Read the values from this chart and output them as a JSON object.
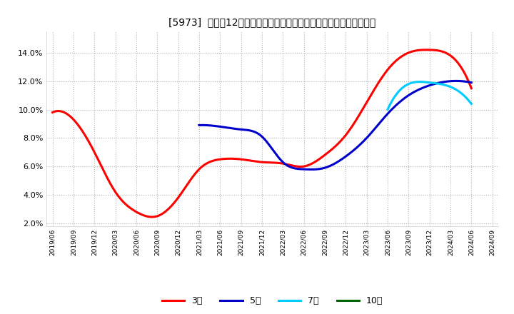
{
  "title": "[5973]  売上高12か月移動合計の対前年同期増減率の標準偏差の推移",
  "ylim": [
    0.018,
    0.155
  ],
  "yticks": [
    0.02,
    0.04,
    0.06,
    0.08,
    0.1,
    0.12,
    0.14
  ],
  "ytick_labels": [
    "2.0%",
    "4.0%",
    "6.0%",
    "8.0%",
    "10.0%",
    "12.0%",
    "14.0%"
  ],
  "background_color": "#ffffff",
  "grid_color": "#aaaaaa",
  "series": {
    "3年": {
      "color": "#ff0000",
      "dates": [
        "2019/06",
        "2019/09",
        "2019/12",
        "2020/03",
        "2020/06",
        "2020/09",
        "2020/12",
        "2021/03",
        "2021/06",
        "2021/09",
        "2021/12",
        "2022/03",
        "2022/06",
        "2022/09",
        "2022/12",
        "2023/03",
        "2023/06",
        "2023/09",
        "2023/12",
        "2024/03",
        "2024/06"
      ],
      "values": [
        0.098,
        0.093,
        0.07,
        0.042,
        0.028,
        0.025,
        0.038,
        0.058,
        0.065,
        0.065,
        0.063,
        0.062,
        0.06,
        0.068,
        0.082,
        0.105,
        0.128,
        0.14,
        0.142,
        0.138,
        0.115
      ]
    },
    "5年": {
      "color": "#0000cc",
      "dates": [
        "2021/03",
        "2021/06",
        "2021/09",
        "2021/12",
        "2022/03",
        "2022/06",
        "2022/09",
        "2022/12",
        "2023/03",
        "2023/06",
        "2023/09",
        "2023/12",
        "2024/03",
        "2024/06"
      ],
      "values": [
        0.089,
        0.088,
        0.086,
        0.081,
        0.063,
        0.058,
        0.059,
        0.067,
        0.08,
        0.097,
        0.11,
        0.117,
        0.12,
        0.119
      ]
    },
    "7年": {
      "color": "#00ccff",
      "dates": [
        "2023/06",
        "2023/09",
        "2023/12",
        "2024/03",
        "2024/06"
      ],
      "values": [
        0.1,
        0.118,
        0.119,
        0.116,
        0.104
      ]
    },
    "10年": {
      "color": "#006600",
      "dates": [],
      "values": []
    }
  },
  "x_tick_dates": [
    "2019/06",
    "2019/09",
    "2019/12",
    "2020/03",
    "2020/06",
    "2020/09",
    "2020/12",
    "2021/03",
    "2021/06",
    "2021/09",
    "2021/12",
    "2022/03",
    "2022/06",
    "2022/09",
    "2022/12",
    "2023/03",
    "2023/06",
    "2023/09",
    "2023/12",
    "2024/03",
    "2024/06",
    "2024/09"
  ],
  "legend": [
    {
      "label": "3年",
      "color": "#ff0000"
    },
    {
      "label": "5年",
      "color": "#0000cc"
    },
    {
      "label": "7年",
      "color": "#00ccff"
    },
    {
      "label": "10年",
      "color": "#006600"
    }
  ]
}
